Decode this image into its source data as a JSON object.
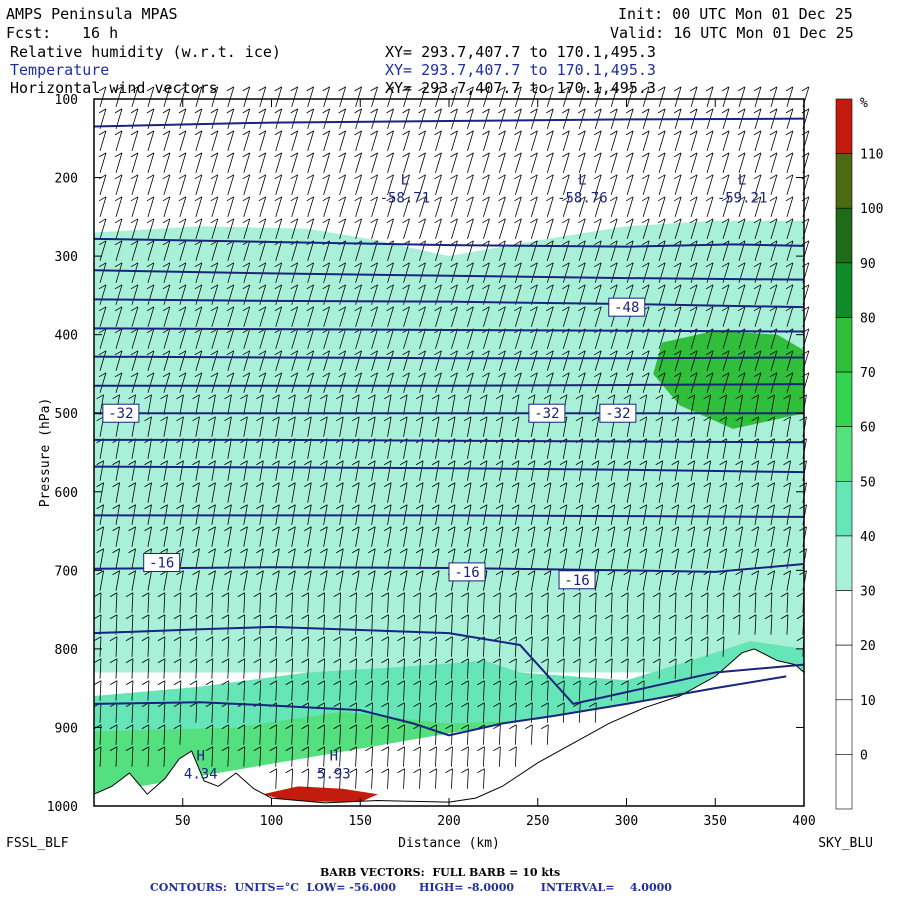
{
  "header": {
    "title": "AMPS Peninsula MPAS",
    "init": "Init: 00 UTC Mon 01 Dec 25",
    "fcst_label": "Fcst:",
    "fcst_value": "16 h",
    "valid": "Valid: 16 UTC Mon 01 Dec 25",
    "fields": [
      {
        "name": "Relative humidity (w.r.t. ice)",
        "xy": "XY= 293.7,407.7 to 170.1,495.3"
      },
      {
        "name": "Temperature",
        "xy": "XY= 293.7,407.7 to 170.1,495.3"
      },
      {
        "name": "Horizontal wind vectors",
        "xy": "XY= 293.7,407.7 to 170.1,495.3"
      }
    ]
  },
  "colors": {
    "contour": "#1a237e",
    "barb": "#000000",
    "terrain": "#ffffff",
    "rh_levels": [
      "#ffffff",
      "#ffffff",
      "#ffffff",
      "#ffffff",
      "#a8f0d8",
      "#66e6b8",
      "#55e07f",
      "#33d450",
      "#2fbf3a",
      "#118a2a",
      "#1f6b1a",
      "#4c6a12",
      "#c41c0c"
    ]
  },
  "chart_data": {
    "type": "cross-section",
    "xlabel": "Distance (km)",
    "ylabel": "Pressure (hPa)",
    "xlim": [
      0,
      400
    ],
    "ylim": [
      1000,
      100
    ],
    "x_ticks": [
      50,
      100,
      150,
      200,
      250,
      300,
      350,
      400
    ],
    "y_ticks": [
      100,
      200,
      300,
      400,
      500,
      600,
      700,
      800,
      900,
      1000
    ],
    "left_endpoint": "FSSL_BLF",
    "right_endpoint": "SKY_BLU",
    "colorbar": {
      "unit": "%",
      "labels": [
        110,
        100,
        90,
        80,
        70,
        60,
        50,
        40,
        30,
        20,
        10,
        0
      ]
    },
    "terrain_pressure": [
      [
        0,
        985
      ],
      [
        10,
        975
      ],
      [
        20,
        958
      ],
      [
        30,
        985
      ],
      [
        40,
        965
      ],
      [
        48,
        940
      ],
      [
        55,
        930
      ],
      [
        62,
        968
      ],
      [
        70,
        975
      ],
      [
        80,
        958
      ],
      [
        90,
        978
      ],
      [
        100,
        990
      ],
      [
        130,
        996
      ],
      [
        160,
        993
      ],
      [
        200,
        995
      ],
      [
        215,
        990
      ],
      [
        230,
        975
      ],
      [
        250,
        945
      ],
      [
        270,
        920
      ],
      [
        290,
        895
      ],
      [
        310,
        875
      ],
      [
        330,
        860
      ],
      [
        350,
        835
      ],
      [
        365,
        805
      ],
      [
        372,
        800
      ],
      [
        385,
        815
      ],
      [
        395,
        820
      ],
      [
        400,
        830
      ]
    ],
    "temperature_contours": [
      {
        "level": -56,
        "points": [
          [
            0,
            135
          ],
          [
            100,
            130
          ],
          [
            200,
            128
          ],
          [
            300,
            126
          ],
          [
            400,
            125
          ]
        ]
      },
      {
        "level": -52,
        "points": [
          [
            0,
            278
          ],
          [
            100,
            282
          ],
          [
            200,
            286
          ],
          [
            300,
            288
          ],
          [
            360,
            285
          ],
          [
            400,
            287
          ]
        ]
      },
      {
        "level": -52,
        "points": [
          [
            0,
            318
          ],
          [
            100,
            322
          ],
          [
            200,
            325
          ],
          [
            300,
            328
          ],
          [
            400,
            330
          ]
        ]
      },
      {
        "level": -48,
        "points": [
          [
            0,
            355
          ],
          [
            100,
            357
          ],
          [
            200,
            358
          ],
          [
            300,
            361
          ],
          [
            400,
            365
          ]
        ]
      },
      {
        "level": -44,
        "points": [
          [
            0,
            392
          ],
          [
            100,
            393
          ],
          [
            200,
            394
          ],
          [
            300,
            395
          ],
          [
            400,
            396
          ]
        ]
      },
      {
        "level": -40,
        "points": [
          [
            0,
            428
          ],
          [
            100,
            429
          ],
          [
            200,
            430
          ],
          [
            300,
            430
          ],
          [
            400,
            429
          ]
        ]
      },
      {
        "level": -36,
        "points": [
          [
            0,
            465
          ],
          [
            100,
            465
          ],
          [
            200,
            465
          ],
          [
            300,
            464
          ],
          [
            400,
            463
          ]
        ]
      },
      {
        "level": -32,
        "points": [
          [
            0,
            500
          ],
          [
            100,
            500
          ],
          [
            200,
            500
          ],
          [
            300,
            500
          ],
          [
            400,
            500
          ]
        ]
      },
      {
        "level": -28,
        "points": [
          [
            0,
            534
          ],
          [
            100,
            534
          ],
          [
            200,
            535
          ],
          [
            300,
            536
          ],
          [
            400,
            537
          ]
        ]
      },
      {
        "level": -24,
        "points": [
          [
            0,
            568
          ],
          [
            100,
            569
          ],
          [
            200,
            570
          ],
          [
            300,
            572
          ],
          [
            400,
            575
          ]
        ]
      },
      {
        "level": -20,
        "points": [
          [
            0,
            630
          ],
          [
            100,
            630
          ],
          [
            200,
            630
          ],
          [
            300,
            631
          ],
          [
            400,
            632
          ]
        ]
      },
      {
        "level": -16,
        "points": [
          [
            0,
            698
          ],
          [
            100,
            696
          ],
          [
            200,
            697
          ],
          [
            300,
            700
          ],
          [
            350,
            702
          ],
          [
            400,
            692
          ]
        ]
      },
      {
        "level": -12,
        "points": [
          [
            0,
            780
          ],
          [
            60,
            775
          ],
          [
            100,
            772
          ],
          [
            150,
            776
          ],
          [
            200,
            780
          ],
          [
            240,
            795
          ],
          [
            250,
            820
          ],
          [
            270,
            870
          ],
          [
            300,
            855
          ],
          [
            350,
            830
          ],
          [
            400,
            820
          ]
        ]
      },
      {
        "level": -8,
        "points": [
          [
            0,
            870
          ],
          [
            60,
            868
          ],
          [
            100,
            872
          ],
          [
            150,
            878
          ],
          [
            180,
            895
          ],
          [
            200,
            910
          ],
          [
            230,
            895
          ],
          [
            260,
            885
          ],
          [
            300,
            870
          ],
          [
            350,
            850
          ],
          [
            390,
            835
          ]
        ]
      }
    ],
    "contour_labels": [
      {
        "text": "-48",
        "x": 290,
        "p": 365
      },
      {
        "text": "-32",
        "x": 5,
        "p": 500
      },
      {
        "text": "-32",
        "x": 245,
        "p": 500
      },
      {
        "text": "-32",
        "x": 285,
        "p": 500
      },
      {
        "text": "-16",
        "x": 28,
        "p": 690
      },
      {
        "text": "-16",
        "x": 200,
        "p": 702
      },
      {
        "text": "-16",
        "x": 262,
        "p": 712
      }
    ],
    "extrema": [
      {
        "type": "L",
        "value": "-58.71",
        "x": 165,
        "p": 232
      },
      {
        "type": "L",
        "value": "-58.76",
        "x": 265,
        "p": 232
      },
      {
        "type": "L",
        "value": "-59.21",
        "x": 355,
        "p": 232
      },
      {
        "type": "H",
        "value": "4.34",
        "x": 50,
        "p": 965
      },
      {
        "type": "H",
        "value": "5.93",
        "x": 125,
        "p": 965
      }
    ],
    "rh_regions": [
      {
        "level": 30,
        "points": [
          [
            0,
            270
          ],
          [
            60,
            262
          ],
          [
            120,
            265
          ],
          [
            160,
            280
          ],
          [
            200,
            300
          ],
          [
            250,
            280
          ],
          [
            300,
            262
          ],
          [
            350,
            255
          ],
          [
            400,
            255
          ],
          [
            400,
            830
          ],
          [
            0,
            830
          ]
        ]
      },
      {
        "level": 40,
        "points": [
          [
            0,
            860
          ],
          [
            60,
            848
          ],
          [
            120,
            830
          ],
          [
            180,
            822
          ],
          [
            220,
            815
          ],
          [
            240,
            830
          ],
          [
            300,
            840
          ],
          [
            340,
            812
          ],
          [
            370,
            790
          ],
          [
            400,
            800
          ],
          [
            400,
            830
          ],
          [
            0,
            985
          ]
        ]
      },
      {
        "level": 50,
        "points": [
          [
            0,
            905
          ],
          [
            80,
            900
          ],
          [
            140,
            880
          ],
          [
            200,
            895
          ],
          [
            250,
            890
          ],
          [
            300,
            870
          ],
          [
            350,
            845
          ],
          [
            400,
            830
          ],
          [
            400,
            830
          ],
          [
            0,
            985
          ]
        ]
      },
      {
        "level": 70,
        "points": [
          [
            320,
            410
          ],
          [
            350,
            395
          ],
          [
            385,
            400
          ],
          [
            400,
            420
          ],
          [
            400,
            500
          ],
          [
            360,
            520
          ],
          [
            330,
            490
          ],
          [
            315,
            450
          ]
        ]
      },
      {
        "level": 110,
        "points": [
          [
            95,
            985
          ],
          [
            115,
            975
          ],
          [
            140,
            978
          ],
          [
            160,
            985
          ],
          [
            150,
            995
          ],
          [
            110,
            994
          ]
        ]
      }
    ]
  },
  "footer": {
    "barb_text": "BARB VECTORS:  FULL BARB = 10 kts",
    "contours_text": "CONTOURS:  UNITS=°C  LOW= -56.000      HIGH= -8.0000       INTERVAL=    4.0000"
  }
}
